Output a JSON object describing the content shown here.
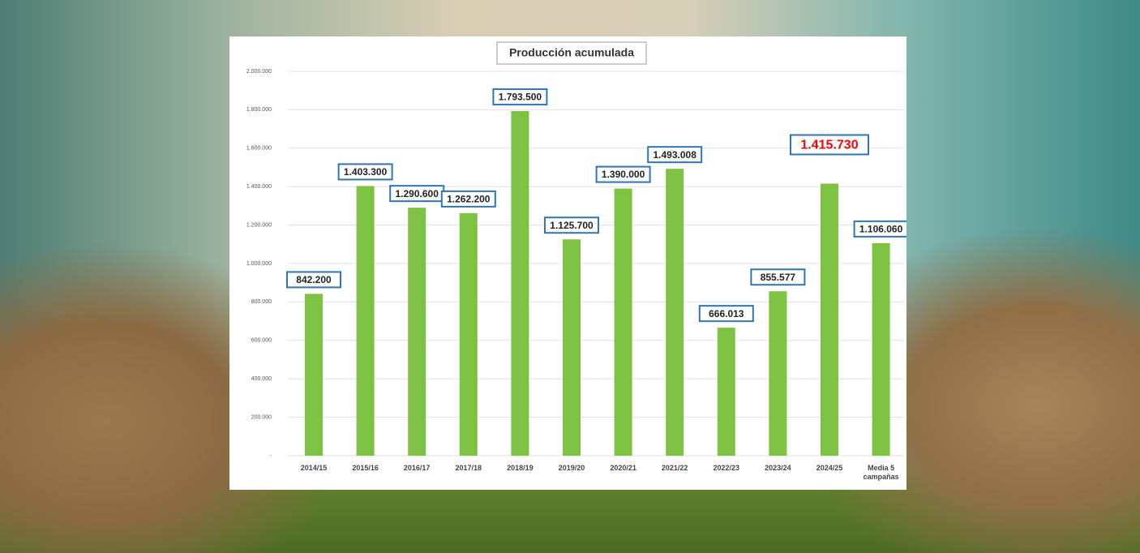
{
  "chart_data": {
    "type": "bar",
    "title": "Producción acumulada",
    "categories": [
      "2014/15",
      "2015/16",
      "2016/17",
      "2017/18",
      "2018/19",
      "2019/20",
      "2020/21",
      "2021/22",
      "2022/23",
      "2023/24",
      "2024/25",
      "Media 5 campañas"
    ],
    "values": [
      842200,
      1403300,
      1290600,
      1262200,
      1793500,
      1125700,
      1390000,
      1493008,
      666013,
      855577,
      1415730,
      1106060
    ],
    "value_labels": [
      "842.200",
      "1.403.300",
      "1.290.600",
      "1.262.200",
      "1.793.500",
      "1.125.700",
      "1.390.000",
      "1.493.008",
      "666.013",
      "855.577",
      "1.415.730",
      "1.106.060"
    ],
    "value_label_colors": [
      "#222222",
      "#222222",
      "#222222",
      "#222222",
      "#222222",
      "#222222",
      "#222222",
      "#222222",
      "#222222",
      "#222222",
      "#ff0000",
      "#222222"
    ],
    "color": "#7dc242",
    "ylim": [
      0,
      2000000
    ],
    "yticks": [
      {
        "value": 0,
        "label": "-"
      },
      {
        "value": 200000,
        "label": "200.000"
      },
      {
        "value": 400000,
        "label": "400.000"
      },
      {
        "value": 600000,
        "label": "600.000"
      },
      {
        "value": 800000,
        "label": "800.000"
      },
      {
        "value": 1000000,
        "label": "1.000.000"
      },
      {
        "value": 1200000,
        "label": "1.200.000"
      },
      {
        "value": 1400000,
        "label": "1.400.000"
      },
      {
        "value": 1600000,
        "label": "1.600.000"
      },
      {
        "value": 1800000,
        "label": "1.800.000"
      },
      {
        "value": 2000000,
        "label": "2.000.000"
      }
    ],
    "grid": true
  }
}
